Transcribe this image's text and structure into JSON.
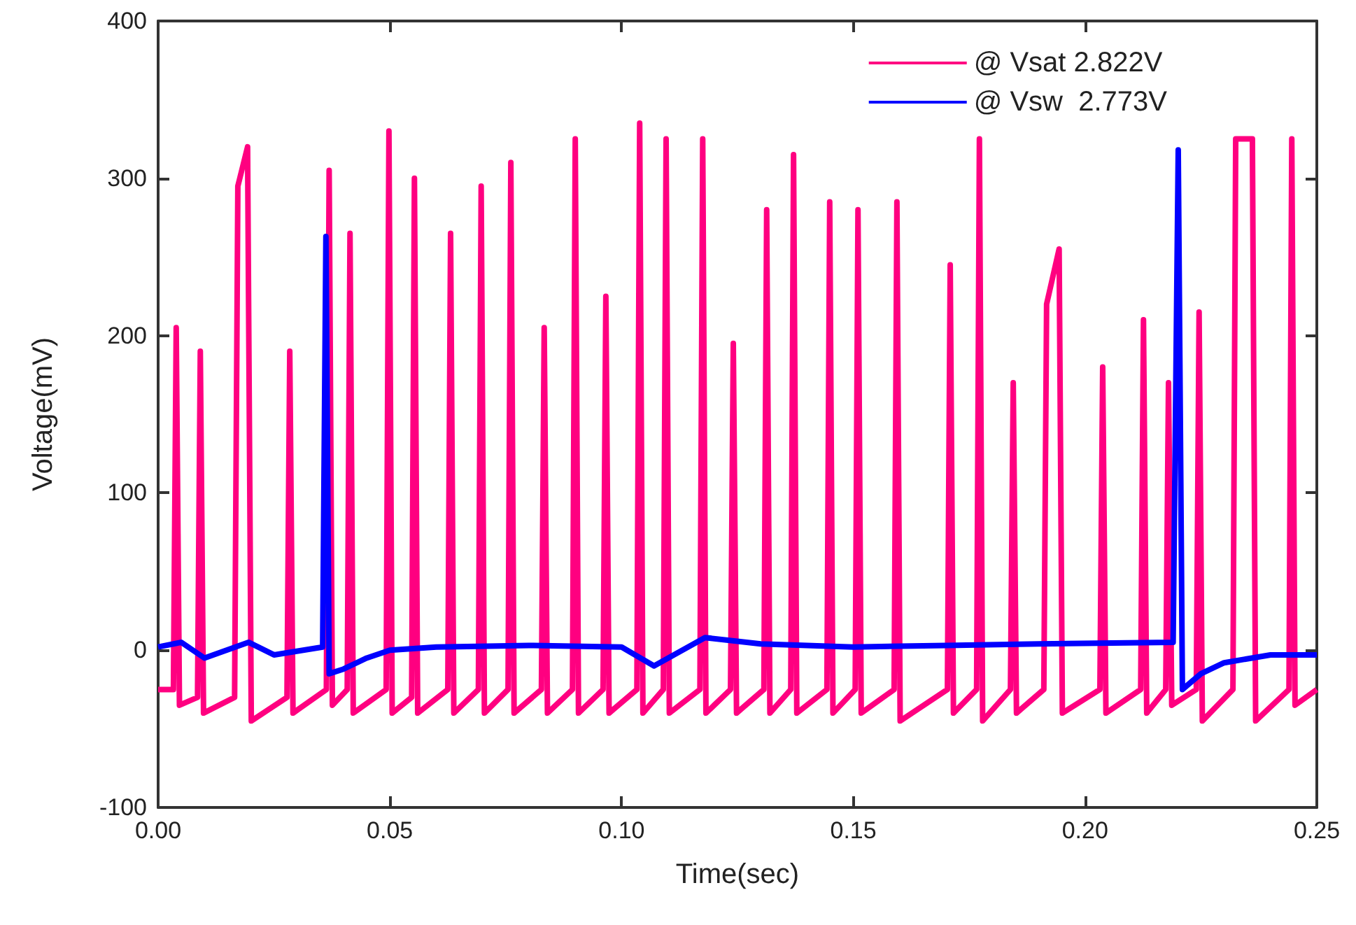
{
  "chart_data": {
    "type": "line",
    "xlabel": "Time(sec)",
    "ylabel": "Voltage(mV)",
    "xlim": [
      0,
      0.25
    ],
    "ylim": [
      -100,
      400
    ],
    "xticks": [
      {
        "value": 0,
        "label": "0.00"
      },
      {
        "value": 0.05,
        "label": "0.05"
      },
      {
        "value": 0.1,
        "label": "0.10"
      },
      {
        "value": 0.15,
        "label": "0.15"
      },
      {
        "value": 0.2,
        "label": "0.20"
      },
      {
        "value": 0.25,
        "label": "0.25"
      }
    ],
    "yticks": [
      -100,
      0,
      100,
      200,
      300,
      400
    ],
    "grid": false,
    "legend": "top right",
    "marker": "none",
    "line_style": "solid",
    "series": [
      {
        "name": "@ Vsat 2.822V",
        "color": "#ff0080",
        "x": [
          0,
          0.0033,
          0.0039,
          0.0046,
          0.0085,
          0.0091,
          0.0098,
          0.0165,
          0.0172,
          0.0193,
          0.0201,
          0.0278,
          0.0284,
          0.0291,
          0.0363,
          0.0369,
          0.0376,
          0.0408,
          0.0414,
          0.0421,
          0.0492,
          0.0498,
          0.0505,
          0.0547,
          0.0553,
          0.056,
          0.0625,
          0.0631,
          0.0638,
          0.0691,
          0.0697,
          0.0704,
          0.0755,
          0.0761,
          0.0768,
          0.0827,
          0.0833,
          0.084,
          0.0894,
          0.09,
          0.0907,
          0.096,
          0.0966,
          0.0973,
          0.1033,
          0.1039,
          0.1046,
          0.109,
          0.1096,
          0.1103,
          0.1169,
          0.1175,
          0.1182,
          0.1235,
          0.1241,
          0.1248,
          0.1307,
          0.1313,
          0.132,
          0.1365,
          0.1371,
          0.1378,
          0.1443,
          0.1449,
          0.1456,
          0.1504,
          0.151,
          0.1517,
          0.1588,
          0.1594,
          0.1601,
          0.1703,
          0.1709,
          0.1716,
          0.1766,
          0.1772,
          0.1779,
          0.1839,
          0.1845,
          0.1852,
          0.1911,
          0.1917,
          0.1944,
          0.1951,
          0.2032,
          0.2038,
          0.2045,
          0.212,
          0.2126,
          0.2133,
          0.2174,
          0.218,
          0.2187,
          0.224,
          0.2246,
          0.2253,
          0.2319,
          0.2325,
          0.2361,
          0.2368,
          0.244,
          0.2446,
          0.2453,
          0.25
        ],
        "values": [
          -25,
          -25,
          205,
          -35,
          -30,
          190,
          -40,
          -30,
          295,
          320,
          -45,
          -30,
          190,
          -40,
          -25,
          305,
          -35,
          -25,
          265,
          -40,
          -25,
          330,
          -40,
          -30,
          300,
          -40,
          -25,
          265,
          -40,
          -25,
          295,
          -40,
          -25,
          310,
          -40,
          -25,
          205,
          -40,
          -25,
          325,
          -40,
          -25,
          225,
          -40,
          -25,
          335,
          -40,
          -25,
          325,
          -40,
          -25,
          325,
          -40,
          -25,
          195,
          -40,
          -25,
          280,
          -40,
          -25,
          315,
          -40,
          -25,
          285,
          -40,
          -25,
          280,
          -40,
          -25,
          285,
          -45,
          -25,
          245,
          -40,
          -25,
          325,
          -45,
          -25,
          170,
          -40,
          -25,
          220,
          255,
          -40,
          -25,
          180,
          -40,
          -25,
          210,
          -40,
          -25,
          170,
          -35,
          -25,
          215,
          -45,
          -25,
          325,
          325,
          -45,
          -25,
          325,
          -35,
          -25
        ]
      },
      {
        "name": "@ Vsw  2.773V",
        "color": "#0000ff",
        "x": [
          0,
          0.005,
          0.01,
          0.0195,
          0.025,
          0.0355,
          0.0362,
          0.0369,
          0.04,
          0.045,
          0.05,
          0.06,
          0.08,
          0.1,
          0.107,
          0.118,
          0.13,
          0.15,
          0.17,
          0.19,
          0.219,
          0.2201,
          0.221,
          0.225,
          0.23,
          0.24,
          0.25
        ],
        "values": [
          2,
          5,
          -5,
          5,
          -3,
          2,
          263,
          -15,
          -12,
          -5,
          0,
          2,
          3,
          2,
          -10,
          8,
          4,
          2,
          3,
          4,
          5,
          318,
          -25,
          -15,
          -8,
          -3,
          -3
        ]
      }
    ]
  }
}
